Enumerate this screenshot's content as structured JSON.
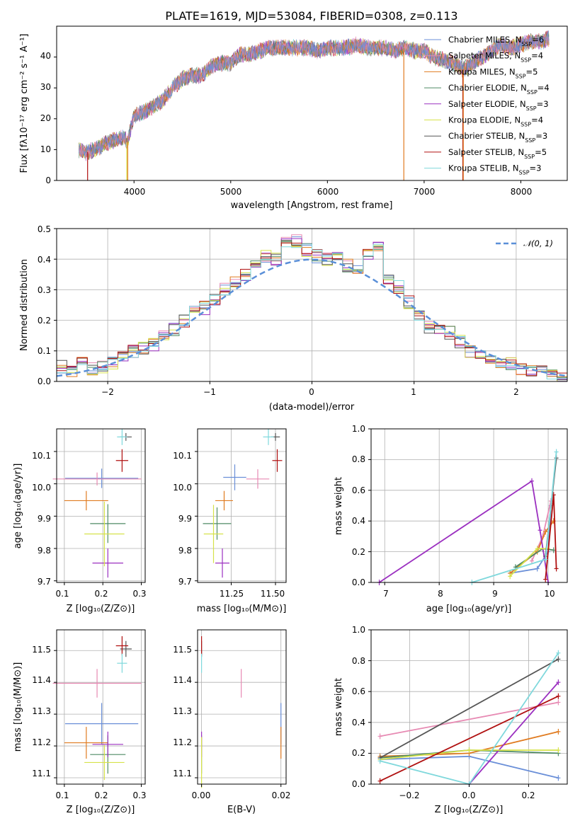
{
  "figure": {
    "title": "PLATE=1619, MJD=53084, FIBERID=0308, z=0.113"
  },
  "spectrum": {
    "xlabel": "wavelength [Angstrom, rest frame]",
    "ylabel": "Flux [fλ10⁻¹⁷ erg cm⁻² s⁻¹ A⁻¹]",
    "xticks": [
      "4000",
      "5000",
      "6000",
      "7000",
      "8000"
    ],
    "yticks": [
      "0",
      "10",
      "20",
      "30",
      "40"
    ],
    "legend": [
      "Chabrier MILES, N_SSP=6",
      "Salpeter MILES, N_SSP=4",
      "Kroupa MILES, N_SSP=5",
      "Chabrier ELODIE, N_SSP=4",
      "Salpeter ELODIE, N_SSP=3",
      "Kroupa ELODIE, N_SSP=4",
      "Chabrier STELIB, N_SSP=3",
      "Salpeter STELIB, N_SSP=5",
      "Kroupa STELIB, N_SSP=3"
    ]
  },
  "model_colors": [
    "#6a8fd8",
    "#e78ab3",
    "#e07b20",
    "#4f8a64",
    "#9b30c0",
    "#d6e24a",
    "#555555",
    "#b01010",
    "#7fd8dc"
  ],
  "histogram": {
    "xlabel": "(data-model)/error",
    "ylabel": "Normed distribution",
    "xticks": [
      "−2",
      "−1",
      "0",
      "1",
      "2"
    ],
    "yticks": [
      "0.0",
      "0.1",
      "0.2",
      "0.3",
      "0.4",
      "0.5"
    ],
    "legend": "𝒩(0, 1)"
  },
  "age_z": {
    "xlabel": "Z [log₁₀(Z/Z⊙)]",
    "ylabel": "age  [log₁₀(age/yr)]",
    "xticks": [
      "0.1",
      "0.2",
      "0.3"
    ],
    "yticks": [
      "9.7",
      "9.8",
      "9.9",
      "10.0",
      "10.1"
    ]
  },
  "age_mass": {
    "xlabel": "mass [log₁₀(M/M⊙)]",
    "xticks": [
      "11.25",
      "11.50"
    ],
    "yticks": [
      "9.7",
      "9.8",
      "9.9",
      "10.0",
      "10.1"
    ]
  },
  "mw_age": {
    "xlabel": "age  [log₁₀(age/yr)]",
    "ylabel": "mass weight",
    "xticks": [
      "7",
      "8",
      "9",
      "10"
    ],
    "yticks": [
      "0.0",
      "0.2",
      "0.4",
      "0.6",
      "0.8",
      "1.0"
    ]
  },
  "mass_z": {
    "xlabel": "Z [log₁₀(Z/Z⊙)]",
    "ylabel": "mass [log₁₀(M/M⊙)]",
    "xticks": [
      "0.1",
      "0.2",
      "0.3"
    ],
    "yticks": [
      "11.1",
      "11.2",
      "11.3",
      "11.4",
      "11.5"
    ]
  },
  "mass_ebv": {
    "xlabel": "E(B-V)",
    "xticks": [
      "0.00",
      "0.02"
    ],
    "yticks": [
      "11.1",
      "11.2",
      "11.3",
      "11.4",
      "11.5"
    ]
  },
  "mw_z": {
    "xlabel": "Z [log₁₀(Z/Z⊙)]",
    "ylabel": "mass weight",
    "xticks": [
      "−0.2",
      "0.0",
      "0.2"
    ],
    "yticks": [
      "0.0",
      "0.2",
      "0.4",
      "0.6",
      "0.8",
      "1.0"
    ]
  },
  "chart_data": [
    {
      "type": "line",
      "title": "PLATE=1619, MJD=53084, FIBERID=0308, z=0.113",
      "xlabel": "wavelength [Angstrom, rest frame]",
      "ylabel": "Flux [fλ10⁻¹⁷ erg cm⁻² s⁻¹ A⁻¹]",
      "xlim": [
        3200,
        8480
      ],
      "ylim": [
        0,
        50
      ],
      "legend_position": "top-right",
      "x": [
        3430,
        3500,
        3600,
        3700,
        3800,
        3900,
        3930,
        4000,
        4100,
        4200,
        4300,
        4400,
        4500,
        4600,
        4700,
        4800,
        4900,
        5000,
        5100,
        5200,
        5300,
        5400,
        5500,
        5600,
        5700,
        5800,
        5900,
        6000,
        6100,
        6200,
        6300,
        6400,
        6500,
        6600,
        6700,
        6800,
        6900,
        7000,
        7100,
        7200,
        7300,
        7400,
        7500,
        7600,
        7700,
        7800,
        7900,
        8000,
        8100,
        8200,
        8290
      ],
      "y": [
        10,
        9,
        10,
        12,
        13,
        14,
        12,
        21,
        22,
        24,
        26,
        30,
        33,
        34,
        34,
        37,
        38,
        38,
        41,
        41,
        42,
        43,
        43,
        43,
        43,
        43,
        42,
        43,
        43,
        43,
        44,
        43,
        43,
        43,
        42,
        43,
        42,
        42,
        40,
        39,
        38,
        36,
        38,
        40,
        42,
        44,
        43,
        44,
        45,
        45,
        46
      ],
      "series": [
        {
          "name": "Chabrier MILES, N_SSP=6"
        },
        {
          "name": "Salpeter MILES, N_SSP=4"
        },
        {
          "name": "Kroupa MILES, N_SSP=5"
        },
        {
          "name": "Chabrier ELODIE, N_SSP=4"
        },
        {
          "name": "Salpeter ELODIE, N_SSP=3"
        },
        {
          "name": "Kroupa ELODIE, N_SSP=4"
        },
        {
          "name": "Chabrier STELIB, N_SSP=3"
        },
        {
          "name": "Salpeter STELIB, N_SSP=5"
        },
        {
          "name": "Kroupa STELIB, N_SSP=3"
        }
      ]
    },
    {
      "type": "bar",
      "xlabel": "(data-model)/error",
      "ylabel": "Normed distribution",
      "xlim": [
        -2.5,
        2.5
      ],
      "ylim": [
        0,
        0.5
      ],
      "grid": true,
      "bin_width": 0.1,
      "reference_curve": {
        "name": "𝒩(0, 1)",
        "style": "dashed",
        "color": "#5a8fd8"
      },
      "bin_centers": [
        -2.45,
        -2.35,
        -2.25,
        -2.15,
        -2.05,
        -1.95,
        -1.85,
        -1.75,
        -1.65,
        -1.55,
        -1.45,
        -1.35,
        -1.25,
        -1.15,
        -1.05,
        -0.95,
        -0.85,
        -0.75,
        -0.65,
        -0.55,
        -0.45,
        -0.35,
        -0.25,
        -0.15,
        -0.05,
        0.05,
        0.15,
        0.25,
        0.35,
        0.45,
        0.55,
        0.65,
        0.75,
        0.85,
        0.95,
        1.05,
        1.15,
        1.25,
        1.35,
        1.45,
        1.55,
        1.65,
        1.75,
        1.85,
        1.95,
        2.05,
        2.15,
        2.25,
        2.35,
        2.45
      ],
      "values": [
        0.05,
        0.03,
        0.06,
        0.04,
        0.05,
        0.06,
        0.08,
        0.1,
        0.11,
        0.12,
        0.15,
        0.17,
        0.2,
        0.24,
        0.24,
        0.27,
        0.3,
        0.32,
        0.35,
        0.38,
        0.41,
        0.4,
        0.45,
        0.46,
        0.43,
        0.41,
        0.4,
        0.42,
        0.38,
        0.37,
        0.42,
        0.44,
        0.34,
        0.31,
        0.26,
        0.22,
        0.18,
        0.17,
        0.16,
        0.13,
        0.1,
        0.09,
        0.08,
        0.06,
        0.06,
        0.04,
        0.03,
        0.03,
        0.03,
        0.02
      ]
    },
    {
      "type": "scatter",
      "xlabel": "Z [log₁₀(Z/Z⊙)]",
      "ylabel": "age  [log₁₀(age/yr)]",
      "xlim": [
        0.08,
        0.31
      ],
      "ylim": [
        9.695,
        10.17
      ],
      "grid": true,
      "points": [
        {
          "x": 0.197,
          "y": 10.017,
          "xerr": 0.095,
          "yerr": 0.03
        },
        {
          "x": 0.185,
          "y": 10.015,
          "xerr": 0.115,
          "yerr": 0.02
        },
        {
          "x": 0.157,
          "y": 9.948,
          "xerr": 0.057,
          "yerr": 0.03
        },
        {
          "x": 0.213,
          "y": 9.877,
          "xerr": 0.046,
          "yerr": 0.06
        },
        {
          "x": 0.213,
          "y": 9.755,
          "xerr": 0.04,
          "yerr": 0.045
        },
        {
          "x": 0.204,
          "y": 9.845,
          "xerr": 0.052,
          "yerr": 0.1
        },
        {
          "x": 0.26,
          "y": 10.145,
          "xerr": 0.015,
          "yerr": 0.012
        },
        {
          "x": 0.25,
          "y": 10.072,
          "xerr": 0.016,
          "yerr": 0.035
        },
        {
          "x": 0.25,
          "y": 10.145,
          "xerr": 0.013,
          "yerr": 0.025
        }
      ]
    },
    {
      "type": "scatter",
      "xlabel": "mass [log₁₀(M/M⊙)]",
      "xlim": [
        11.06,
        11.56
      ],
      "ylim": [
        9.695,
        10.17
      ],
      "grid": true,
      "points": [
        {
          "x": 11.27,
          "y": 10.02,
          "xerr": 0.065,
          "yerr": 0.04
        },
        {
          "x": 11.4,
          "y": 10.015,
          "xerr": 0.065,
          "yerr": 0.03
        },
        {
          "x": 11.21,
          "y": 9.948,
          "xerr": 0.05,
          "yerr": 0.03
        },
        {
          "x": 11.17,
          "y": 9.877,
          "xerr": 0.08,
          "yerr": 0.05
        },
        {
          "x": 11.2,
          "y": 9.755,
          "xerr": 0.04,
          "yerr": 0.045
        },
        {
          "x": 11.15,
          "y": 9.845,
          "xerr": 0.055,
          "yerr": 0.09
        },
        {
          "x": 11.5,
          "y": 10.145,
          "xerr": 0.025,
          "yerr": 0.012
        },
        {
          "x": 11.51,
          "y": 10.072,
          "xerr": 0.028,
          "yerr": 0.035
        },
        {
          "x": 11.46,
          "y": 10.145,
          "xerr": 0.03,
          "yerr": 0.025
        }
      ]
    },
    {
      "type": "line",
      "xlabel": "age  [log₁₀(age/yr)]",
      "ylabel": "mass weight",
      "xlim": [
        6.75,
        10.35
      ],
      "ylim": [
        0,
        1.0
      ],
      "grid": true,
      "series": [
        {
          "x": [
            9.3,
            9.8,
            10.0,
            10.05
          ],
          "y": [
            0.06,
            0.09,
            0.2,
            0.5
          ]
        },
        {
          "x": [
            9.7,
            9.9,
            10.05
          ],
          "y": [
            0.14,
            0.3,
            0.53
          ]
        },
        {
          "x": [
            9.3,
            9.8,
            9.95,
            10.1
          ],
          "y": [
            0.06,
            0.2,
            0.33,
            0.4
          ]
        },
        {
          "x": [
            9.4,
            9.9,
            10.1
          ],
          "y": [
            0.1,
            0.22,
            0.21
          ]
        },
        {
          "x": [
            6.9,
            9.7,
            9.85,
            10.0
          ],
          "y": [
            0.0,
            0.66,
            0.34,
            0.0
          ]
        },
        {
          "x": [
            9.3,
            9.8,
            10.0
          ],
          "y": [
            0.04,
            0.22,
            0.22
          ]
        },
        {
          "x": [
            9.95,
            10.15
          ],
          "y": [
            0.17,
            0.81
          ]
        },
        {
          "x": [
            9.95,
            10.1,
            10.15
          ],
          "y": [
            0.02,
            0.57,
            0.09
          ]
        },
        {
          "x": [
            8.6,
            9.95,
            10.15
          ],
          "y": [
            0.0,
            0.15,
            0.85
          ]
        }
      ]
    },
    {
      "type": "scatter",
      "xlabel": "Z [log₁₀(Z/Z⊙)]",
      "ylabel": "mass [log₁₀(M/M⊙)]",
      "xlim": [
        0.08,
        0.31
      ],
      "ylim": [
        11.08,
        11.565
      ],
      "grid": true,
      "points": [
        {
          "x": 0.197,
          "y": 11.27,
          "xerr": 0.095,
          "yerr": 0.065
        },
        {
          "x": 0.185,
          "y": 11.397,
          "xerr": 0.115,
          "yerr": 0.045
        },
        {
          "x": 0.157,
          "y": 11.21,
          "xerr": 0.057,
          "yerr": 0.05
        },
        {
          "x": 0.213,
          "y": 11.173,
          "xerr": 0.046,
          "yerr": 0.06
        },
        {
          "x": 0.213,
          "y": 11.205,
          "xerr": 0.04,
          "yerr": 0.04
        },
        {
          "x": 0.204,
          "y": 11.148,
          "xerr": 0.052,
          "yerr": 0.055
        },
        {
          "x": 0.26,
          "y": 11.505,
          "xerr": 0.015,
          "yerr": 0.025
        },
        {
          "x": 0.25,
          "y": 11.515,
          "xerr": 0.016,
          "yerr": 0.03
        },
        {
          "x": 0.25,
          "y": 11.46,
          "xerr": 0.013,
          "yerr": 0.03
        }
      ]
    },
    {
      "type": "scatter",
      "xlabel": "E(B-V)",
      "xlim": [
        -0.001,
        0.0213
      ],
      "ylim": [
        11.08,
        11.565
      ],
      "grid": true,
      "points": [
        {
          "x": 0.02,
          "y": 11.27,
          "xerr": 0,
          "yerr": 0.065
        },
        {
          "x": 0.01,
          "y": 11.397,
          "xerr": 0,
          "yerr": 0.045
        },
        {
          "x": 0.02,
          "y": 11.21,
          "xerr": 0,
          "yerr": 0.05
        },
        {
          "x": 0.0,
          "y": 11.173,
          "xerr": 0,
          "yerr": 0.06
        },
        {
          "x": 0.0,
          "y": 11.205,
          "xerr": 0,
          "yerr": 0.04
        },
        {
          "x": 0.0,
          "y": 11.148,
          "xerr": 0,
          "yerr": 0.08
        },
        {
          "x": 0.0,
          "y": 11.505,
          "xerr": 0,
          "yerr": 0.025
        },
        {
          "x": 0.0,
          "y": 11.515,
          "xerr": 0,
          "yerr": 0.03
        },
        {
          "x": 0.0,
          "y": 11.46,
          "xerr": 0,
          "yerr": 0.03
        }
      ]
    },
    {
      "type": "line",
      "xlabel": "Z [log₁₀(Z/Z⊙)]",
      "ylabel": "mass weight",
      "xlim": [
        -0.33,
        0.33
      ],
      "ylim": [
        0,
        1.0
      ],
      "grid": true,
      "series": [
        {
          "x": [
            -0.3,
            0.0,
            0.3
          ],
          "y": [
            0.16,
            0.18,
            0.04
          ]
        },
        {
          "x": [
            -0.3,
            0.3
          ],
          "y": [
            0.31,
            0.53
          ]
        },
        {
          "x": [
            -0.3,
            0.0,
            0.3
          ],
          "y": [
            0.18,
            0.2,
            0.34
          ]
        },
        {
          "x": [
            -0.3,
            0.0,
            0.3
          ],
          "y": [
            0.17,
            0.22,
            0.2
          ]
        },
        {
          "x": [
            0.0,
            0.3
          ],
          "y": [
            0.0,
            0.66
          ]
        },
        {
          "x": [
            -0.3,
            0.0,
            0.3
          ],
          "y": [
            0.16,
            0.22,
            0.22
          ]
        },
        {
          "x": [
            -0.3,
            0.3
          ],
          "y": [
            0.17,
            0.81
          ]
        },
        {
          "x": [
            -0.3,
            0.3
          ],
          "y": [
            0.02,
            0.57
          ]
        },
        {
          "x": [
            -0.3,
            0.0,
            0.3
          ],
          "y": [
            0.15,
            0.0,
            0.85
          ]
        }
      ]
    }
  ]
}
